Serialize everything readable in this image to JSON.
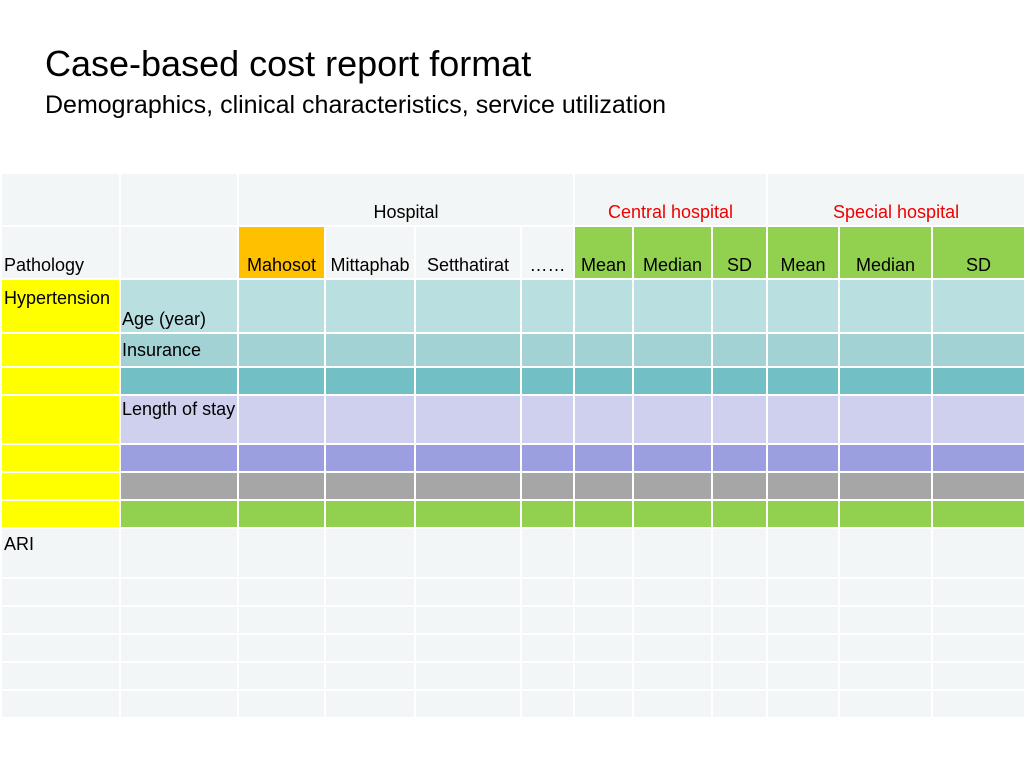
{
  "title": "Case-based cost report format",
  "subtitle": "Demographics, clinical characteristics, service utilization",
  "table": {
    "group_headers": {
      "hospital": "Hospital",
      "central": "Central hospital",
      "special": "Special hospital"
    },
    "columns": {
      "pathology": "Pathology",
      "mahosot": "Mahosot",
      "mittaphab": "Mittaphab",
      "setthatirat": "Setthatirat",
      "ellipsis": "……",
      "central_mean": "Mean",
      "central_median": "Median",
      "central_sd": "SD",
      "special_mean": "Mean",
      "special_median": "Median",
      "special_sd": "SD"
    },
    "pathologies": {
      "hypertension": "Hypertension",
      "ari": "ARI"
    },
    "variables": {
      "age": "Age (year)",
      "insurance": "Insurance",
      "length_of_stay": "Length of stay"
    }
  },
  "colors": {
    "mahosot_header": "#ffc000",
    "summary_header": "#92d050",
    "pathology_highlight": "#ffff00",
    "group_label_red": "#ee0000"
  }
}
